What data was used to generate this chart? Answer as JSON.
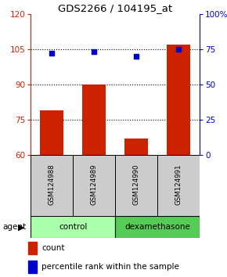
{
  "title": "GDS2266 / 104195_at",
  "samples": [
    "GSM124988",
    "GSM124989",
    "GSM124990",
    "GSM124991"
  ],
  "bar_values": [
    79,
    90,
    67,
    107
  ],
  "scatter_values": [
    72,
    73,
    70,
    75
  ],
  "bar_color": "#cc2200",
  "scatter_color": "#0000cc",
  "ylim_left": [
    60,
    120
  ],
  "ylim_right": [
    0,
    100
  ],
  "yticks_left": [
    60,
    75,
    90,
    105,
    120
  ],
  "yticks_right": [
    0,
    25,
    50,
    75,
    100
  ],
  "ytick_labels_right": [
    "0",
    "25",
    "50",
    "75",
    "100%"
  ],
  "hlines": [
    75,
    90,
    105
  ],
  "groups": [
    {
      "label": "control",
      "indices": [
        0,
        1
      ],
      "color": "#aaffaa"
    },
    {
      "label": "dexamethasone",
      "indices": [
        2,
        3
      ],
      "color": "#55cc55"
    }
  ],
  "agent_label": "agent",
  "legend_count_label": "count",
  "legend_pct_label": "percentile rank within the sample",
  "bar_bottom": 60,
  "bar_width": 0.55,
  "sample_bg": "#cccccc",
  "fig_bg": "#ffffff"
}
